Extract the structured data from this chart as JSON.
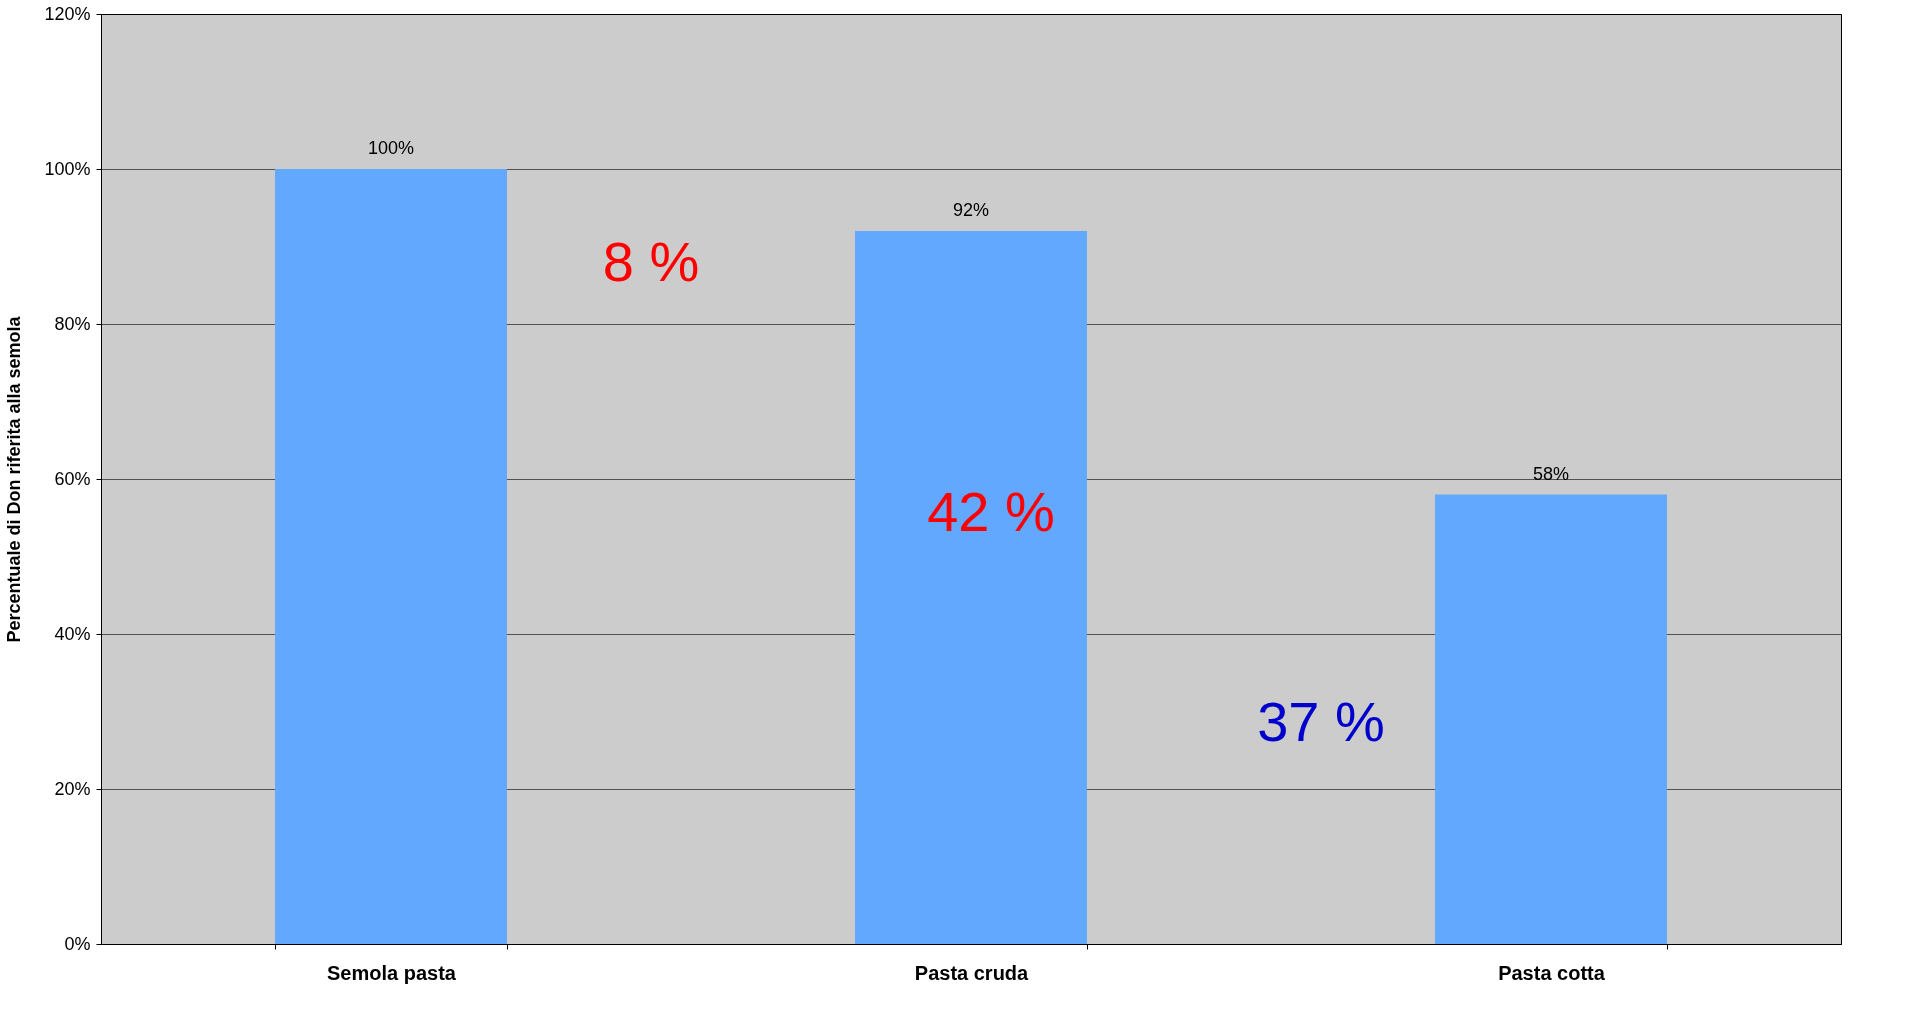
{
  "chart_data": {
    "type": "bar",
    "ylabel": "Percentuale di Don riferita alla semola",
    "categories": [
      "Semola pasta",
      "Pasta cruda",
      "Pasta cotta"
    ],
    "values": [
      100,
      92,
      58
    ],
    "value_labels": [
      "100%",
      "92%",
      "58%"
    ],
    "color": "#63a8ff",
    "ylim": [
      0,
      120
    ],
    "yticks": [
      {
        "value": 0,
        "label": "0%"
      },
      {
        "value": 20,
        "label": "20%"
      },
      {
        "value": 40,
        "label": "40%"
      },
      {
        "value": 60,
        "label": "60%"
      },
      {
        "value": 80,
        "label": "80%"
      },
      {
        "value": 100,
        "label": "100%"
      },
      {
        "value": 120,
        "label": "120%"
      }
    ],
    "grid": "y",
    "annotations": [
      "8 %",
      "42 %",
      "37 %"
    ]
  }
}
